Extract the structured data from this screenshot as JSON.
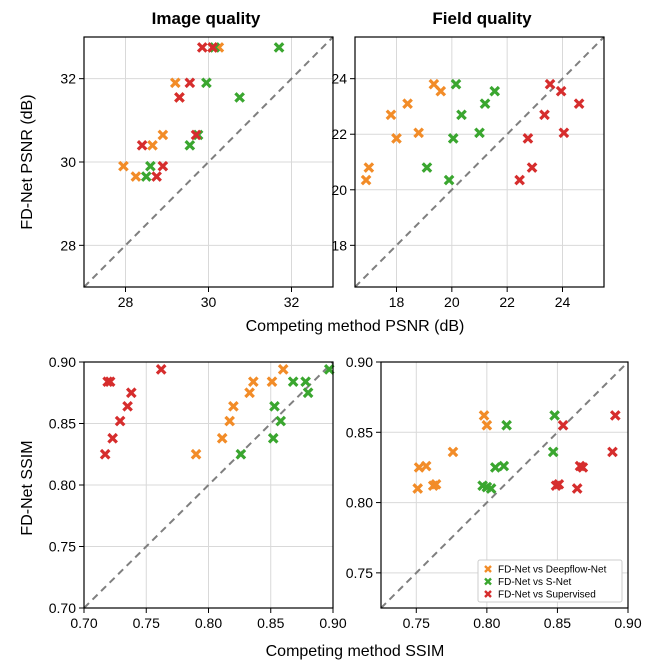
{
  "chart_data": [
    {
      "type": "scatter",
      "panel": "top-left",
      "title": "Image quality",
      "xlabel": "",
      "ylabel": "FD-Net PSNR (dB)",
      "xlim": [
        27.0,
        33.0
      ],
      "ylim": [
        27.0,
        33.0
      ],
      "xticks": [
        "28",
        "30",
        "32"
      ],
      "yticks": [
        "28",
        "30",
        "32"
      ],
      "grid": true,
      "diagonal": true,
      "series": [
        {
          "name": "FD-Net vs Deepflow-Net",
          "color": "#f28c28",
          "x": [
            27.95,
            28.25,
            28.65,
            28.9,
            29.2,
            29.3,
            30.1,
            30.25
          ],
          "y": [
            29.9,
            29.65,
            30.4,
            30.65,
            31.9,
            31.55,
            32.75,
            32.75
          ]
        },
        {
          "name": "FD-Net vs S-Net",
          "color": "#3aa62f",
          "x": [
            28.5,
            28.6,
            29.55,
            29.75,
            29.95,
            30.15,
            30.75,
            31.7
          ],
          "y": [
            29.65,
            29.9,
            30.4,
            30.65,
            31.9,
            32.75,
            31.55,
            32.75
          ]
        },
        {
          "name": "FD-Net vs Supervised",
          "color": "#d62d2d",
          "x": [
            28.4,
            28.75,
            28.9,
            29.3,
            29.55,
            29.7,
            29.85,
            30.1
          ],
          "y": [
            30.4,
            29.65,
            29.9,
            31.55,
            31.9,
            30.65,
            32.75,
            32.75
          ]
        }
      ]
    },
    {
      "type": "scatter",
      "panel": "top-right",
      "title": "Field quality",
      "xlabel": "",
      "ylabel": "",
      "xlim": [
        16.5,
        25.5
      ],
      "ylim": [
        16.5,
        25.5
      ],
      "xticks": [
        "18",
        "20",
        "22",
        "24"
      ],
      "yticks": [
        "18",
        "20",
        "22",
        "24"
      ],
      "grid": true,
      "diagonal": true,
      "series": [
        {
          "name": "FD-Net vs Deepflow-Net",
          "color": "#f28c28",
          "x": [
            16.9,
            17.0,
            17.8,
            18.0,
            18.4,
            18.8,
            19.35,
            19.6
          ],
          "y": [
            20.35,
            20.8,
            22.7,
            21.85,
            23.1,
            22.05,
            23.8,
            23.55
          ]
        },
        {
          "name": "FD-Net vs S-Net",
          "color": "#3aa62f",
          "x": [
            19.1,
            19.9,
            20.05,
            20.15,
            20.35,
            21.0,
            21.2,
            21.55
          ],
          "y": [
            20.8,
            20.35,
            21.85,
            23.8,
            22.7,
            22.05,
            23.1,
            23.55
          ]
        },
        {
          "name": "FD-Net vs Supervised",
          "color": "#d62d2d",
          "x": [
            22.45,
            22.75,
            22.9,
            23.35,
            23.55,
            23.95,
            24.05,
            24.6
          ],
          "y": [
            20.35,
            21.85,
            20.8,
            22.7,
            23.8,
            23.55,
            22.05,
            23.1
          ]
        }
      ]
    },
    {
      "type": "scatter",
      "panel": "bottom-left",
      "title": "",
      "xlabel": "Competing method SSIM",
      "ylabel": "FD-Net SSIM",
      "xlim": [
        0.7,
        0.9
      ],
      "ylim": [
        0.7,
        0.9
      ],
      "xticks": [
        "0.70",
        "0.75",
        "0.80",
        "0.85",
        "0.90"
      ],
      "yticks": [
        "0.70",
        "0.75",
        "0.80",
        "0.85",
        "0.90"
      ],
      "grid": true,
      "diagonal": true,
      "series": [
        {
          "name": "FD-Net vs Deepflow-Net",
          "color": "#f28c28",
          "x": [
            0.79,
            0.811,
            0.817,
            0.82,
            0.833,
            0.836,
            0.851,
            0.86
          ],
          "y": [
            0.825,
            0.838,
            0.852,
            0.864,
            0.875,
            0.884,
            0.884,
            0.894
          ]
        },
        {
          "name": "FD-Net vs S-Net",
          "color": "#3aa62f",
          "x": [
            0.826,
            0.852,
            0.853,
            0.858,
            0.868,
            0.878,
            0.88,
            0.897
          ],
          "y": [
            0.825,
            0.838,
            0.864,
            0.852,
            0.884,
            0.884,
            0.875,
            0.894
          ]
        },
        {
          "name": "FD-Net vs Supervised",
          "color": "#d62d2d",
          "x": [
            0.717,
            0.719,
            0.721,
            0.723,
            0.729,
            0.735,
            0.738,
            0.762
          ],
          "y": [
            0.825,
            0.884,
            0.884,
            0.838,
            0.852,
            0.864,
            0.875,
            0.894
          ]
        }
      ]
    },
    {
      "type": "scatter",
      "panel": "bottom-right",
      "title": "",
      "xlabel": "",
      "ylabel": "",
      "xlim": [
        0.725,
        0.9
      ],
      "ylim": [
        0.725,
        0.9
      ],
      "xticks": [
        "0.75",
        "0.80",
        "0.85",
        "0.90"
      ],
      "yticks": [
        "0.75",
        "0.80",
        "0.85",
        "0.90"
      ],
      "grid": true,
      "diagonal": true,
      "series": [
        {
          "name": "FD-Net vs Deepflow-Net",
          "color": "#f28c28",
          "x": [
            0.751,
            0.752,
            0.757,
            0.762,
            0.764,
            0.776,
            0.798,
            0.8
          ],
          "y": [
            0.81,
            0.825,
            0.826,
            0.812,
            0.813,
            0.836,
            0.862,
            0.855
          ]
        },
        {
          "name": "FD-Net vs S-Net",
          "color": "#3aa62f",
          "x": [
            0.797,
            0.8,
            0.803,
            0.806,
            0.812,
            0.814,
            0.847,
            0.848
          ],
          "y": [
            0.812,
            0.811,
            0.81,
            0.825,
            0.826,
            0.855,
            0.836,
            0.862
          ]
        },
        {
          "name": "FD-Net vs Supervised",
          "color": "#d62d2d",
          "x": [
            0.849,
            0.851,
            0.854,
            0.864,
            0.866,
            0.868,
            0.889,
            0.891
          ],
          "y": [
            0.812,
            0.813,
            0.855,
            0.81,
            0.826,
            0.825,
            0.836,
            0.862
          ]
        }
      ]
    }
  ],
  "shared": {
    "ylabel_top": "FD-Net PSNR (dB)",
    "xlabel_top": "Competing method PSNR (dB)",
    "ylabel_bottom": "FD-Net SSIM",
    "xlabel_bottom": "Competing method SSIM"
  },
  "legend": {
    "placement": "lower-right of bottom-right panel",
    "entries": [
      {
        "label": "FD-Net vs Deepflow-Net",
        "color": "#f28c28"
      },
      {
        "label": "FD-Net vs S-Net",
        "color": "#3aa62f"
      },
      {
        "label": "FD-Net vs Supervised",
        "color": "#d62d2d"
      }
    ]
  }
}
